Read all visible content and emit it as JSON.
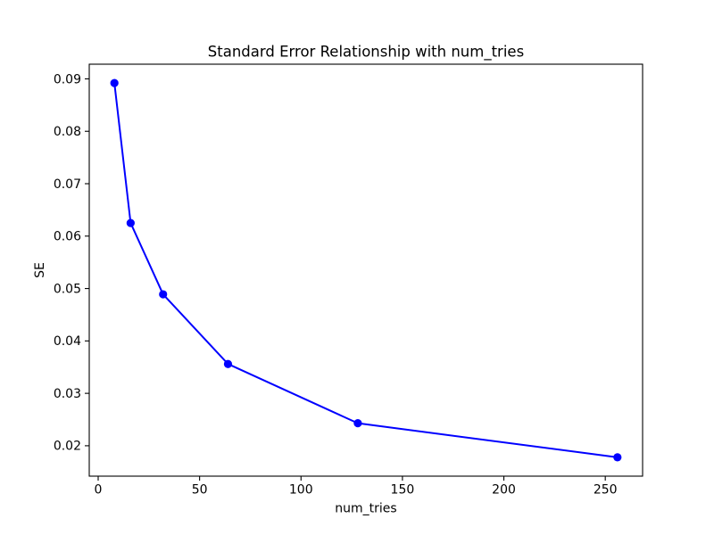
{
  "figure": {
    "background_color": "#ffffff",
    "text_color": "#000000",
    "spine_color": "#000000"
  },
  "chart_data": {
    "type": "line",
    "title": "Standard Error Relationship with num_tries",
    "xlabel": "num_tries",
    "ylabel": "SE",
    "x": [
      8,
      16,
      32,
      64,
      128,
      256
    ],
    "y": [
      0.0892,
      0.0625,
      0.0489,
      0.0356,
      0.0243,
      0.0178
    ],
    "line_color": "#0000ff",
    "marker": "circle",
    "marker_color": "#0000ff",
    "xlim": [
      -4.4,
      268.4
    ],
    "ylim": [
      0.0142,
      0.0928
    ],
    "xticks": [
      0,
      50,
      100,
      150,
      200,
      250
    ],
    "xtick_labels": [
      "0",
      "50",
      "100",
      "150",
      "200",
      "250"
    ],
    "yticks": [
      0.02,
      0.03,
      0.04,
      0.05,
      0.06,
      0.07,
      0.08,
      0.09
    ],
    "ytick_labels": [
      "0.02",
      "0.03",
      "0.04",
      "0.05",
      "0.06",
      "0.07",
      "0.08",
      "0.09"
    ],
    "grid": false,
    "legend": "none"
  }
}
